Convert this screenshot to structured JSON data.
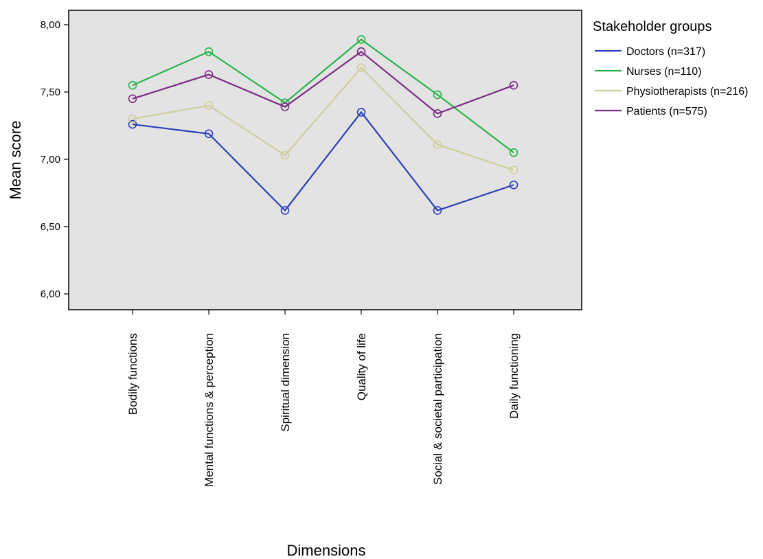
{
  "chart_data": {
    "type": "line",
    "title": "",
    "xlabel": "Dimensions",
    "ylabel": "Mean score",
    "ylim": [
      6.0,
      8.0
    ],
    "yticks": [
      6.0,
      6.5,
      7.0,
      7.5,
      8.0
    ],
    "ytick_labels": [
      "6,00",
      "6,50",
      "7,00",
      "7,50",
      "8,00"
    ],
    "grid": false,
    "categories": [
      "Bodily functions",
      "Mental functions & perception",
      "Spiritual dimension",
      "Quality of life",
      "Social & societal participation",
      "Daily functioning"
    ],
    "legend": {
      "title": "Stakeholder groups",
      "placement": "right"
    },
    "series": [
      {
        "name": "Doctors (n=317)",
        "color": "#2b3fb8",
        "values": [
          7.26,
          7.19,
          6.62,
          7.35,
          6.62,
          6.81
        ]
      },
      {
        "name": "Nurses (n=110)",
        "color": "#29b34a",
        "values": [
          7.55,
          7.8,
          7.42,
          7.89,
          7.48,
          7.05
        ]
      },
      {
        "name": "Physiotherapists (n=216)",
        "color": "#cfcd9c",
        "values": [
          7.3,
          7.4,
          7.03,
          7.68,
          7.11,
          6.92
        ]
      },
      {
        "name": "Patients (n=575)",
        "color": "#7b2b82",
        "values": [
          7.45,
          7.63,
          7.39,
          7.8,
          7.34,
          7.55
        ]
      }
    ]
  }
}
